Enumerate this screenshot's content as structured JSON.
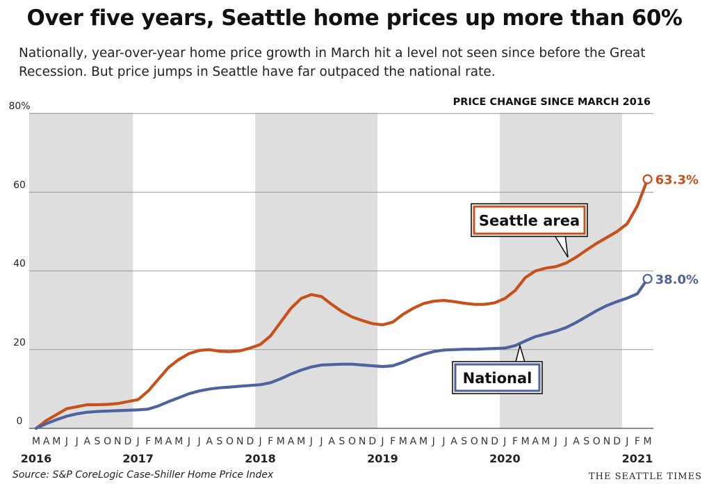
{
  "title": "Over five years, Seattle home prices up more than 60%",
  "subtitle": "Nationally, year-over-year home price growth in March hit a level not seen since before the Great Recession. But price jumps in Seattle have far outpaced the national rate.",
  "source": "Source: S&P CoreLogic Case-Shiller Home Price Index",
  "credit": "THE SEATTLE TIMES",
  "colors": {
    "seattle": "#c8501a",
    "national": "#4f62a0",
    "band": "#dedede",
    "grid": "#999999"
  },
  "chart_data": {
    "type": "line",
    "title": "PRICE CHANGE SINCE MARCH 2016",
    "xlabel": "",
    "ylabel": "",
    "ylim": [
      0,
      80
    ],
    "yticks": [
      0,
      20,
      40,
      60,
      80
    ],
    "ytick_labels": [
      "0",
      "20",
      "40",
      "60",
      "80%"
    ],
    "x_start": "2016-03",
    "x_end": "2021-03",
    "month_labels": [
      "M",
      "A",
      "M",
      "J",
      "J",
      "A",
      "S",
      "O",
      "N",
      "D",
      "J",
      "F",
      "M",
      "A",
      "M",
      "J",
      "J",
      "A",
      "S",
      "O",
      "N",
      "D",
      "J",
      "F",
      "M",
      "A",
      "M",
      "J",
      "J",
      "A",
      "S",
      "O",
      "N",
      "D",
      "J",
      "F",
      "M",
      "A",
      "M",
      "J",
      "J",
      "A",
      "S",
      "O",
      "N",
      "D",
      "J",
      "F",
      "M",
      "A",
      "M",
      "J",
      "J",
      "A",
      "S",
      "O",
      "N",
      "D",
      "J",
      "F",
      "M"
    ],
    "year_labels": [
      {
        "label": "2016",
        "month": "2016-03"
      },
      {
        "label": "2017",
        "month": "2017-01"
      },
      {
        "label": "2018",
        "month": "2018-01"
      },
      {
        "label": "2019",
        "month": "2019-01"
      },
      {
        "label": "2020",
        "month": "2020-01"
      },
      {
        "label": "2021",
        "month": "2021-01"
      }
    ],
    "shaded_years": [
      "2016",
      "2018",
      "2020"
    ],
    "grid": true,
    "series": [
      {
        "name": "Seattle area",
        "end_label": "63.3%",
        "values": [
          0,
          2,
          3.5,
          5,
          5.5,
          6,
          6,
          6.1,
          6.3,
          6.8,
          7.3,
          9.5,
          12.5,
          15.5,
          17.5,
          19,
          19.8,
          20,
          19.6,
          19.5,
          19.7,
          20.4,
          21.3,
          23.5,
          27,
          30.5,
          33,
          34,
          33.5,
          31.5,
          29.7,
          28.3,
          27.4,
          26.6,
          26.3,
          27,
          29,
          30.5,
          31.7,
          32.3,
          32.5,
          32.2,
          31.8,
          31.5,
          31.5,
          31.9,
          33,
          35,
          38.3,
          40,
          40.7,
          41.1,
          42,
          43.5,
          45.3,
          47,
          48.5,
          50,
          52,
          56.5,
          63.3
        ]
      },
      {
        "name": "National",
        "end_label": "38.0%",
        "values": [
          0,
          1.2,
          2.2,
          3.1,
          3.7,
          4.1,
          4.3,
          4.4,
          4.5,
          4.6,
          4.7,
          4.9,
          5.7,
          6.8,
          7.8,
          8.8,
          9.5,
          10,
          10.3,
          10.5,
          10.7,
          10.9,
          11.1,
          11.6,
          12.6,
          13.8,
          14.8,
          15.6,
          16.1,
          16.2,
          16.3,
          16.3,
          16.1,
          15.9,
          15.7,
          15.9,
          16.8,
          17.9,
          18.8,
          19.5,
          19.9,
          20,
          20.1,
          20.1,
          20.2,
          20.3,
          20.4,
          21,
          22.2,
          23.3,
          24,
          24.7,
          25.6,
          26.9,
          28.4,
          29.9,
          31.2,
          32.2,
          33.1,
          34.2,
          38
        ]
      }
    ]
  }
}
